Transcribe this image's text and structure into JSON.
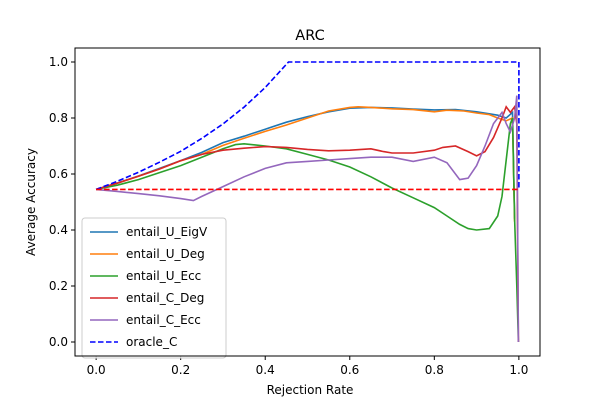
{
  "chart_data": {
    "type": "line",
    "title": "ARC",
    "xlabel": "Rejection Rate",
    "ylabel": "Average Accuracy",
    "xlim": [
      -0.05,
      1.05
    ],
    "ylim": [
      -0.05,
      1.05
    ],
    "xticks": [
      "0.0",
      "0.2",
      "0.4",
      "0.6",
      "0.8",
      "1.0"
    ],
    "yticks": [
      "0.0",
      "0.2",
      "0.4",
      "0.6",
      "0.8",
      "1.0"
    ],
    "grid": false,
    "legend_position": "lower-left",
    "series": [
      {
        "name": "entail_U_EigV",
        "color": "#1f77b4",
        "dash": "solid",
        "points": [
          [
            0,
            0.545
          ],
          [
            0.05,
            0.568
          ],
          [
            0.1,
            0.593
          ],
          [
            0.15,
            0.62
          ],
          [
            0.2,
            0.648
          ],
          [
            0.25,
            0.677
          ],
          [
            0.3,
            0.712
          ],
          [
            0.35,
            0.735
          ],
          [
            0.4,
            0.76
          ],
          [
            0.45,
            0.785
          ],
          [
            0.5,
            0.805
          ],
          [
            0.55,
            0.822
          ],
          [
            0.6,
            0.835
          ],
          [
            0.65,
            0.838
          ],
          [
            0.7,
            0.836
          ],
          [
            0.75,
            0.832
          ],
          [
            0.8,
            0.829
          ],
          [
            0.85,
            0.83
          ],
          [
            0.9,
            0.822
          ],
          [
            0.93,
            0.815
          ],
          [
            0.95,
            0.81
          ],
          [
            0.97,
            0.8
          ],
          [
            0.985,
            0.82
          ],
          [
            0.99,
            0.44
          ]
        ]
      },
      {
        "name": "entail_U_Deg",
        "color": "#ff7f0e",
        "dash": "solid",
        "points": [
          [
            0,
            0.545
          ],
          [
            0.05,
            0.567
          ],
          [
            0.1,
            0.592
          ],
          [
            0.15,
            0.618
          ],
          [
            0.2,
            0.647
          ],
          [
            0.25,
            0.67
          ],
          [
            0.3,
            0.702
          ],
          [
            0.35,
            0.728
          ],
          [
            0.4,
            0.752
          ],
          [
            0.45,
            0.775
          ],
          [
            0.5,
            0.8
          ],
          [
            0.55,
            0.825
          ],
          [
            0.6,
            0.838
          ],
          [
            0.62,
            0.84
          ],
          [
            0.65,
            0.838
          ],
          [
            0.7,
            0.833
          ],
          [
            0.75,
            0.83
          ],
          [
            0.8,
            0.822
          ],
          [
            0.83,
            0.828
          ],
          [
            0.87,
            0.825
          ],
          [
            0.9,
            0.818
          ],
          [
            0.93,
            0.812
          ],
          [
            0.95,
            0.8
          ],
          [
            0.97,
            0.79
          ],
          [
            0.985,
            0.8
          ],
          [
            0.99,
            0.43
          ]
        ]
      },
      {
        "name": "entail_U_Ecc",
        "color": "#2ca02c",
        "dash": "solid",
        "points": [
          [
            0,
            0.545
          ],
          [
            0.05,
            0.56
          ],
          [
            0.1,
            0.58
          ],
          [
            0.15,
            0.605
          ],
          [
            0.2,
            0.63
          ],
          [
            0.25,
            0.66
          ],
          [
            0.3,
            0.69
          ],
          [
            0.33,
            0.705
          ],
          [
            0.35,
            0.708
          ],
          [
            0.4,
            0.7
          ],
          [
            0.45,
            0.69
          ],
          [
            0.5,
            0.67
          ],
          [
            0.55,
            0.65
          ],
          [
            0.6,
            0.625
          ],
          [
            0.65,
            0.59
          ],
          [
            0.7,
            0.55
          ],
          [
            0.75,
            0.515
          ],
          [
            0.8,
            0.48
          ],
          [
            0.83,
            0.45
          ],
          [
            0.86,
            0.42
          ],
          [
            0.88,
            0.405
          ],
          [
            0.9,
            0.4
          ],
          [
            0.93,
            0.405
          ],
          [
            0.95,
            0.45
          ],
          [
            0.96,
            0.52
          ],
          [
            0.97,
            0.65
          ],
          [
            0.98,
            0.78
          ],
          [
            0.985,
            0.8
          ],
          [
            0.99,
            0.44
          ],
          [
            0.995,
            0.2
          ],
          [
            0.999,
            0.0
          ]
        ]
      },
      {
        "name": "entail_C_Deg",
        "color": "#d62728",
        "dash": "solid",
        "points": [
          [
            0,
            0.545
          ],
          [
            0.05,
            0.567
          ],
          [
            0.1,
            0.592
          ],
          [
            0.15,
            0.618
          ],
          [
            0.2,
            0.648
          ],
          [
            0.25,
            0.67
          ],
          [
            0.3,
            0.685
          ],
          [
            0.35,
            0.692
          ],
          [
            0.4,
            0.698
          ],
          [
            0.45,
            0.695
          ],
          [
            0.5,
            0.688
          ],
          [
            0.55,
            0.683
          ],
          [
            0.6,
            0.685
          ],
          [
            0.65,
            0.69
          ],
          [
            0.68,
            0.68
          ],
          [
            0.7,
            0.675
          ],
          [
            0.75,
            0.675
          ],
          [
            0.8,
            0.685
          ],
          [
            0.82,
            0.695
          ],
          [
            0.85,
            0.7
          ],
          [
            0.88,
            0.68
          ],
          [
            0.9,
            0.665
          ],
          [
            0.92,
            0.68
          ],
          [
            0.94,
            0.73
          ],
          [
            0.96,
            0.8
          ],
          [
            0.97,
            0.84
          ],
          [
            0.98,
            0.82
          ],
          [
            0.99,
            0.84
          ],
          [
            0.995,
            0.78
          ],
          [
            0.999,
            0.0
          ]
        ]
      },
      {
        "name": "entail_C_Ecc",
        "color": "#9467bd",
        "dash": "solid",
        "points": [
          [
            0,
            0.545
          ],
          [
            0.05,
            0.538
          ],
          [
            0.1,
            0.53
          ],
          [
            0.15,
            0.522
          ],
          [
            0.2,
            0.512
          ],
          [
            0.23,
            0.505
          ],
          [
            0.25,
            0.52
          ],
          [
            0.3,
            0.555
          ],
          [
            0.35,
            0.59
          ],
          [
            0.4,
            0.62
          ],
          [
            0.45,
            0.64
          ],
          [
            0.5,
            0.645
          ],
          [
            0.55,
            0.65
          ],
          [
            0.6,
            0.655
          ],
          [
            0.65,
            0.66
          ],
          [
            0.7,
            0.66
          ],
          [
            0.75,
            0.645
          ],
          [
            0.8,
            0.66
          ],
          [
            0.83,
            0.64
          ],
          [
            0.86,
            0.58
          ],
          [
            0.88,
            0.585
          ],
          [
            0.9,
            0.63
          ],
          [
            0.92,
            0.7
          ],
          [
            0.94,
            0.78
          ],
          [
            0.96,
            0.82
          ],
          [
            0.97,
            0.78
          ],
          [
            0.98,
            0.75
          ],
          [
            0.99,
            0.8
          ],
          [
            0.995,
            0.88
          ],
          [
            0.999,
            0.0
          ]
        ]
      },
      {
        "name": "oracle_C",
        "color": "#0000ff",
        "dash": "dashed",
        "points": [
          [
            0,
            0.545
          ],
          [
            0.05,
            0.574
          ],
          [
            0.1,
            0.606
          ],
          [
            0.15,
            0.642
          ],
          [
            0.2,
            0.681
          ],
          [
            0.25,
            0.727
          ],
          [
            0.3,
            0.779
          ],
          [
            0.35,
            0.839
          ],
          [
            0.4,
            0.909
          ],
          [
            0.455,
            1.0
          ],
          [
            1.0,
            1.0
          ],
          [
            1.0,
            0.545
          ]
        ]
      },
      {
        "name": "",
        "color": "#ff0000",
        "dash": "dashed",
        "points": [
          [
            0,
            0.545
          ],
          [
            1.0,
            0.545
          ]
        ]
      }
    ]
  }
}
